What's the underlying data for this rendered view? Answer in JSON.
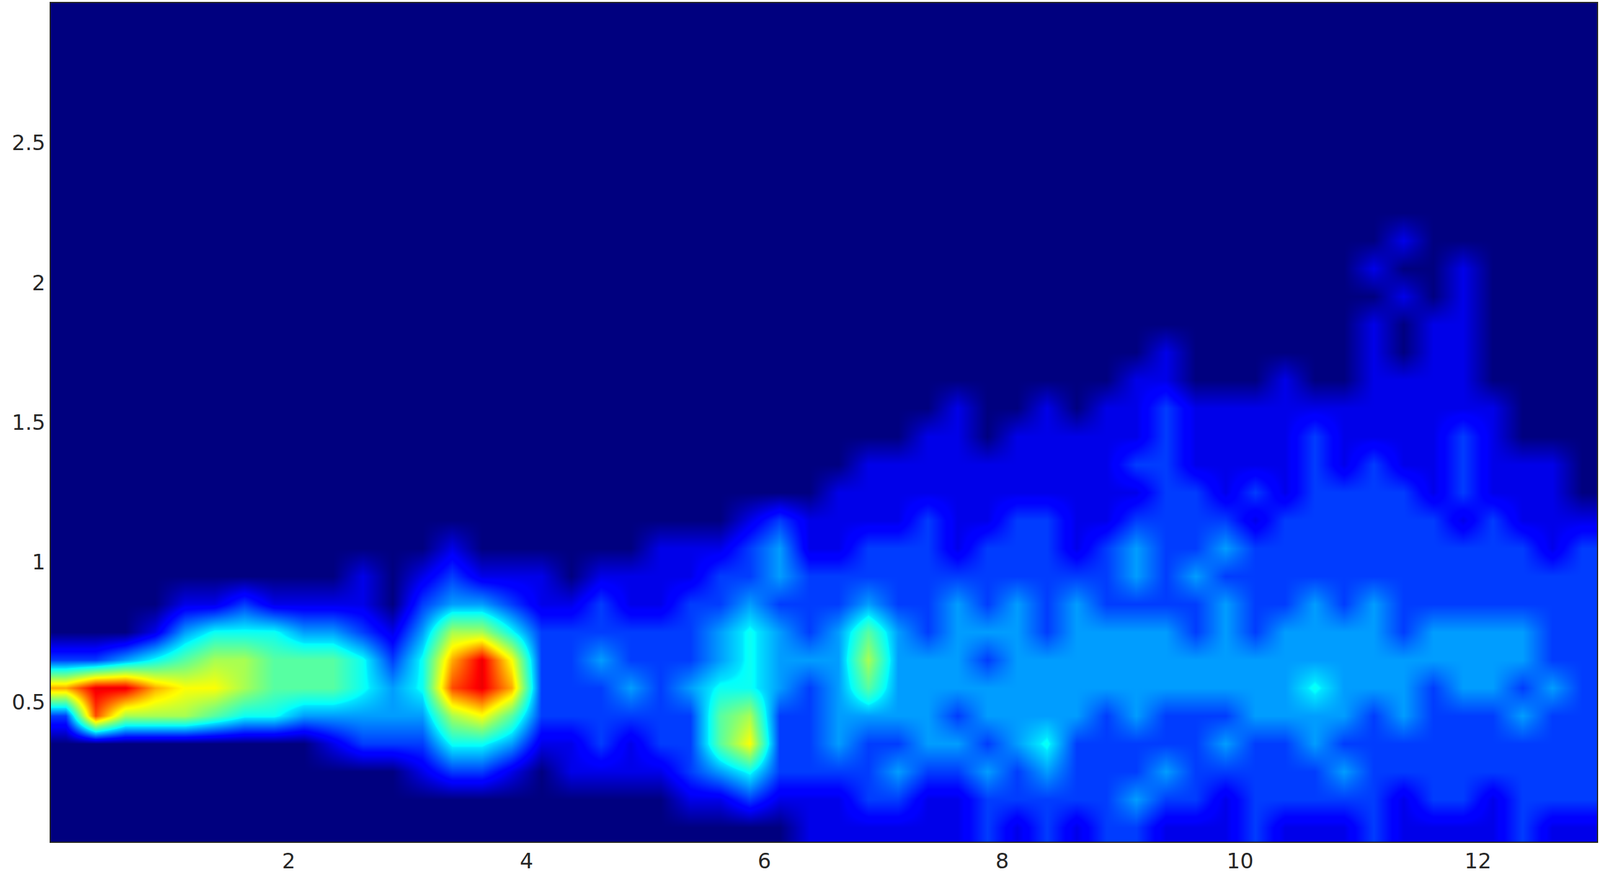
{
  "chart_data": {
    "type": "heatmap",
    "x": [
      0.125,
      0.375,
      0.625,
      0.875,
      1.125,
      1.375,
      1.625,
      1.875,
      2.125,
      2.375,
      2.625,
      2.875,
      3.125,
      3.375,
      3.625,
      3.875,
      4.125,
      4.375,
      4.625,
      4.875,
      5.125,
      5.375,
      5.625,
      5.875,
      6.125,
      6.375,
      6.625,
      6.875,
      7.125,
      7.375,
      7.625,
      7.875,
      8.125,
      8.375,
      8.625,
      8.875,
      9.125,
      9.375,
      9.625,
      9.875,
      10.125,
      10.375,
      10.625,
      10.875,
      11.125,
      11.375,
      11.625,
      11.875,
      12.125,
      12.375,
      12.625,
      12.875
    ],
    "y": [
      0.05,
      0.15,
      0.25,
      0.35,
      0.45,
      0.55,
      0.65,
      0.75,
      0.85,
      0.95,
      1.05,
      1.15,
      1.25,
      1.35,
      1.45,
      1.55,
      1.65,
      1.75,
      1.85,
      1.95,
      2.05,
      2.15,
      2.25,
      2.35,
      2.45,
      2.55,
      2.65,
      2.75,
      2.85,
      2.95
    ],
    "z": [
      [
        0,
        0,
        0,
        0,
        0,
        0,
        0,
        0,
        0,
        0,
        0,
        0,
        0,
        0,
        0,
        0,
        0,
        0,
        0,
        0,
        0,
        0,
        0,
        0,
        0,
        1,
        1,
        1,
        1,
        1,
        1,
        2,
        1,
        2,
        1,
        2,
        2,
        1,
        1,
        1,
        2,
        1,
        1,
        1,
        2,
        1,
        1,
        1,
        1,
        2,
        1,
        1
      ],
      [
        0,
        0,
        0,
        0,
        0,
        0,
        0,
        0,
        0,
        0,
        0,
        0,
        0,
        0,
        0,
        0,
        0,
        0,
        0,
        0,
        0,
        1,
        1,
        2,
        1,
        1,
        1,
        2,
        2,
        1,
        1,
        2,
        2,
        2,
        2,
        2,
        3,
        2,
        2,
        1,
        2,
        2,
        2,
        2,
        2,
        1,
        2,
        2,
        1,
        2,
        2,
        2
      ],
      [
        0,
        0,
        0,
        0,
        0,
        0,
        0,
        0,
        0,
        0,
        0,
        0,
        1,
        2,
        2,
        1,
        0,
        1,
        1,
        1,
        1,
        2,
        3,
        4,
        2,
        2,
        2,
        2,
        3,
        2,
        2,
        3,
        2,
        3,
        2,
        2,
        2,
        3,
        2,
        2,
        2,
        2,
        2,
        3,
        2,
        2,
        2,
        2,
        2,
        2,
        2,
        2
      ],
      [
        0,
        0,
        0,
        0,
        0,
        0,
        0,
        0,
        0,
        1,
        2,
        2,
        2,
        4,
        4,
        3,
        1,
        1,
        2,
        1,
        2,
        2,
        5,
        7,
        2,
        2,
        3,
        2,
        2,
        3,
        3,
        2,
        3,
        4,
        2,
        2,
        2,
        2,
        2,
        3,
        2,
        2,
        3,
        2,
        2,
        2,
        2,
        2,
        2,
        2,
        2,
        2
      ],
      [
        2,
        9,
        6,
        6,
        6,
        5,
        4,
        4,
        3,
        3,
        3,
        3,
        3,
        6,
        7,
        5,
        2,
        2,
        2,
        2,
        2,
        2,
        5,
        6,
        2,
        2,
        3,
        3,
        3,
        3,
        2,
        3,
        3,
        3,
        3,
        2,
        3,
        2,
        2,
        2,
        3,
        3,
        3,
        3,
        2,
        3,
        2,
        2,
        2,
        3,
        2,
        2
      ],
      [
        8,
        10,
        10,
        8,
        7,
        7,
        6,
        5,
        5,
        5,
        4,
        3,
        4,
        9,
        10,
        8,
        2,
        2,
        2,
        3,
        2,
        3,
        4,
        4,
        3,
        2,
        3,
        5,
        3,
        3,
        3,
        3,
        3,
        3,
        3,
        3,
        3,
        3,
        3,
        3,
        3,
        3,
        4,
        3,
        3,
        3,
        2,
        3,
        3,
        2,
        3,
        2
      ],
      [
        2,
        2,
        3,
        4,
        5,
        6,
        6,
        5,
        5,
        5,
        4,
        2,
        4,
        8,
        10,
        7,
        2,
        2,
        3,
        2,
        2,
        2,
        3,
        4,
        3,
        3,
        3,
        6,
        3,
        3,
        3,
        2,
        3,
        3,
        3,
        3,
        3,
        3,
        3,
        3,
        3,
        3,
        3,
        3,
        3,
        3,
        3,
        3,
        3,
        3,
        2,
        2
      ],
      [
        0,
        0,
        0,
        1,
        3,
        4,
        4,
        4,
        3,
        3,
        2,
        1,
        3,
        6,
        6,
        4,
        2,
        2,
        2,
        2,
        2,
        2,
        3,
        4,
        3,
        2,
        3,
        5,
        3,
        2,
        3,
        3,
        3,
        2,
        3,
        3,
        3,
        3,
        2,
        3,
        2,
        3,
        3,
        3,
        3,
        2,
        3,
        3,
        3,
        3,
        2,
        2
      ],
      [
        0,
        0,
        0,
        0,
        1,
        1,
        2,
        1,
        1,
        1,
        1,
        0,
        2,
        3,
        3,
        2,
        1,
        1,
        2,
        1,
        1,
        2,
        2,
        3,
        2,
        2,
        2,
        3,
        2,
        2,
        3,
        2,
        3,
        2,
        3,
        2,
        2,
        2,
        2,
        3,
        2,
        2,
        3,
        2,
        3,
        2,
        2,
        2,
        2,
        2,
        2,
        2
      ],
      [
        0,
        0,
        0,
        0,
        0,
        0,
        0,
        0,
        0,
        0,
        1,
        0,
        1,
        2,
        1,
        1,
        1,
        0,
        1,
        1,
        1,
        1,
        2,
        2,
        3,
        2,
        2,
        2,
        2,
        2,
        2,
        2,
        2,
        2,
        2,
        2,
        3,
        2,
        3,
        2,
        2,
        2,
        2,
        2,
        2,
        2,
        2,
        2,
        2,
        2,
        2,
        2
      ],
      [
        0,
        0,
        0,
        0,
        0,
        0,
        0,
        0,
        0,
        0,
        0,
        0,
        0,
        1,
        0,
        0,
        0,
        0,
        0,
        0,
        1,
        1,
        1,
        2,
        3,
        1,
        1,
        2,
        2,
        2,
        1,
        2,
        2,
        2,
        1,
        2,
        3,
        2,
        2,
        3,
        2,
        2,
        2,
        2,
        2,
        2,
        2,
        2,
        2,
        2,
        1,
        2
      ],
      [
        0,
        0,
        0,
        0,
        0,
        0,
        0,
        0,
        0,
        0,
        0,
        0,
        0,
        0,
        0,
        0,
        0,
        0,
        0,
        0,
        0,
        0,
        0,
        1,
        2,
        1,
        1,
        1,
        1,
        2,
        1,
        1,
        2,
        2,
        1,
        1,
        2,
        2,
        2,
        2,
        1,
        2,
        2,
        2,
        2,
        2,
        2,
        1,
        2,
        1,
        1,
        1
      ],
      [
        0,
        0,
        0,
        0,
        0,
        0,
        0,
        0,
        0,
        0,
        0,
        0,
        0,
        0,
        0,
        0,
        0,
        0,
        0,
        0,
        0,
        0,
        0,
        0,
        0,
        0,
        1,
        1,
        1,
        1,
        1,
        1,
        1,
        1,
        1,
        1,
        1,
        2,
        2,
        1,
        2,
        1,
        2,
        2,
        2,
        2,
        1,
        2,
        1,
        1,
        1,
        0
      ],
      [
        0,
        0,
        0,
        0,
        0,
        0,
        0,
        0,
        0,
        0,
        0,
        0,
        0,
        0,
        0,
        0,
        0,
        0,
        0,
        0,
        0,
        0,
        0,
        0,
        0,
        0,
        0,
        1,
        1,
        1,
        1,
        1,
        1,
        1,
        1,
        1,
        2,
        2,
        1,
        1,
        1,
        1,
        2,
        1,
        2,
        1,
        1,
        2,
        1,
        1,
        1,
        0
      ],
      [
        0,
        0,
        0,
        0,
        0,
        0,
        0,
        0,
        0,
        0,
        0,
        0,
        0,
        0,
        0,
        0,
        0,
        0,
        0,
        0,
        0,
        0,
        0,
        0,
        0,
        0,
        0,
        0,
        0,
        1,
        1,
        0,
        1,
        1,
        1,
        1,
        1,
        2,
        1,
        1,
        1,
        1,
        2,
        1,
        1,
        1,
        1,
        2,
        1,
        0,
        0,
        0
      ],
      [
        0,
        0,
        0,
        0,
        0,
        0,
        0,
        0,
        0,
        0,
        0,
        0,
        0,
        0,
        0,
        0,
        0,
        0,
        0,
        0,
        0,
        0,
        0,
        0,
        0,
        0,
        0,
        0,
        0,
        0,
        1,
        0,
        0,
        1,
        0,
        1,
        1,
        2,
        1,
        1,
        1,
        1,
        1,
        1,
        1,
        1,
        1,
        1,
        1,
        0,
        0,
        0
      ],
      [
        0,
        0,
        0,
        0,
        0,
        0,
        0,
        0,
        0,
        0,
        0,
        0,
        0,
        0,
        0,
        0,
        0,
        0,
        0,
        0,
        0,
        0,
        0,
        0,
        0,
        0,
        0,
        0,
        0,
        0,
        0,
        0,
        0,
        0,
        0,
        0,
        1,
        1,
        0,
        0,
        0,
        1,
        0,
        0,
        1,
        1,
        1,
        1,
        0,
        0,
        0,
        0
      ],
      [
        0,
        0,
        0,
        0,
        0,
        0,
        0,
        0,
        0,
        0,
        0,
        0,
        0,
        0,
        0,
        0,
        0,
        0,
        0,
        0,
        0,
        0,
        0,
        0,
        0,
        0,
        0,
        0,
        0,
        0,
        0,
        0,
        0,
        0,
        0,
        0,
        0,
        1,
        0,
        0,
        0,
        0,
        0,
        0,
        1,
        0,
        1,
        1,
        0,
        0,
        0,
        0
      ],
      [
        0,
        0,
        0,
        0,
        0,
        0,
        0,
        0,
        0,
        0,
        0,
        0,
        0,
        0,
        0,
        0,
        0,
        0,
        0,
        0,
        0,
        0,
        0,
        0,
        0,
        0,
        0,
        0,
        0,
        0,
        0,
        0,
        0,
        0,
        0,
        0,
        0,
        0,
        0,
        0,
        0,
        0,
        0,
        0,
        1,
        0,
        1,
        1,
        0,
        0,
        0,
        0
      ],
      [
        0,
        0,
        0,
        0,
        0,
        0,
        0,
        0,
        0,
        0,
        0,
        0,
        0,
        0,
        0,
        0,
        0,
        0,
        0,
        0,
        0,
        0,
        0,
        0,
        0,
        0,
        0,
        0,
        0,
        0,
        0,
        0,
        0,
        0,
        0,
        0,
        0,
        0,
        0,
        0,
        0,
        0,
        0,
        0,
        0,
        1,
        0,
        1,
        0,
        0,
        0,
        0
      ],
      [
        0,
        0,
        0,
        0,
        0,
        0,
        0,
        0,
        0,
        0,
        0,
        0,
        0,
        0,
        0,
        0,
        0,
        0,
        0,
        0,
        0,
        0,
        0,
        0,
        0,
        0,
        0,
        0,
        0,
        0,
        0,
        0,
        0,
        0,
        0,
        0,
        0,
        0,
        0,
        0,
        0,
        0,
        0,
        0,
        1,
        0,
        0,
        1,
        0,
        0,
        0,
        0
      ],
      [
        0,
        0,
        0,
        0,
        0,
        0,
        0,
        0,
        0,
        0,
        0,
        0,
        0,
        0,
        0,
        0,
        0,
        0,
        0,
        0,
        0,
        0,
        0,
        0,
        0,
        0,
        0,
        0,
        0,
        0,
        0,
        0,
        0,
        0,
        0,
        0,
        0,
        0,
        0,
        0,
        0,
        0,
        0,
        0,
        0,
        1,
        0,
        0,
        0,
        0,
        0,
        0
      ],
      [
        0,
        0,
        0,
        0,
        0,
        0,
        0,
        0,
        0,
        0,
        0,
        0,
        0,
        0,
        0,
        0,
        0,
        0,
        0,
        0,
        0,
        0,
        0,
        0,
        0,
        0,
        0,
        0,
        0,
        0,
        0,
        0,
        0,
        0,
        0,
        0,
        0,
        0,
        0,
        0,
        0,
        0,
        0,
        0,
        0,
        0,
        0,
        0,
        0,
        0,
        0,
        0
      ],
      [
        0,
        0,
        0,
        0,
        0,
        0,
        0,
        0,
        0,
        0,
        0,
        0,
        0,
        0,
        0,
        0,
        0,
        0,
        0,
        0,
        0,
        0,
        0,
        0,
        0,
        0,
        0,
        0,
        0,
        0,
        0,
        0,
        0,
        0,
        0,
        0,
        0,
        0,
        0,
        0,
        0,
        0,
        0,
        0,
        0,
        0,
        0,
        0,
        0,
        0,
        0,
        0
      ],
      [
        0,
        0,
        0,
        0,
        0,
        0,
        0,
        0,
        0,
        0,
        0,
        0,
        0,
        0,
        0,
        0,
        0,
        0,
        0,
        0,
        0,
        0,
        0,
        0,
        0,
        0,
        0,
        0,
        0,
        0,
        0,
        0,
        0,
        0,
        0,
        0,
        0,
        0,
        0,
        0,
        0,
        0,
        0,
        0,
        0,
        0,
        0,
        0,
        0,
        0,
        0,
        0
      ],
      [
        0,
        0,
        0,
        0,
        0,
        0,
        0,
        0,
        0,
        0,
        0,
        0,
        0,
        0,
        0,
        0,
        0,
        0,
        0,
        0,
        0,
        0,
        0,
        0,
        0,
        0,
        0,
        0,
        0,
        0,
        0,
        0,
        0,
        0,
        0,
        0,
        0,
        0,
        0,
        0,
        0,
        0,
        0,
        0,
        0,
        0,
        0,
        0,
        0,
        0,
        0,
        0
      ],
      [
        0,
        0,
        0,
        0,
        0,
        0,
        0,
        0,
        0,
        0,
        0,
        0,
        0,
        0,
        0,
        0,
        0,
        0,
        0,
        0,
        0,
        0,
        0,
        0,
        0,
        0,
        0,
        0,
        0,
        0,
        0,
        0,
        0,
        0,
        0,
        0,
        0,
        0,
        0,
        0,
        0,
        0,
        0,
        0,
        0,
        0,
        0,
        0,
        0,
        0,
        0,
        0
      ],
      [
        0,
        0,
        0,
        0,
        0,
        0,
        0,
        0,
        0,
        0,
        0,
        0,
        0,
        0,
        0,
        0,
        0,
        0,
        0,
        0,
        0,
        0,
        0,
        0,
        0,
        0,
        0,
        0,
        0,
        0,
        0,
        0,
        0,
        0,
        0,
        0,
        0,
        0,
        0,
        0,
        0,
        0,
        0,
        0,
        0,
        0,
        0,
        0,
        0,
        0,
        0,
        0
      ],
      [
        0,
        0,
        0,
        0,
        0,
        0,
        0,
        0,
        0,
        0,
        0,
        0,
        0,
        0,
        0,
        0,
        0,
        0,
        0,
        0,
        0,
        0,
        0,
        0,
        0,
        0,
        0,
        0,
        0,
        0,
        0,
        0,
        0,
        0,
        0,
        0,
        0,
        0,
        0,
        0,
        0,
        0,
        0,
        0,
        0,
        0,
        0,
        0,
        0,
        0,
        0,
        0
      ],
      [
        0,
        0,
        0,
        0,
        0,
        0,
        0,
        0,
        0,
        0,
        0,
        0,
        0,
        0,
        0,
        0,
        0,
        0,
        0,
        0,
        0,
        0,
        0,
        0,
        0,
        0,
        0,
        0,
        0,
        0,
        0,
        0,
        0,
        0,
        0,
        0,
        0,
        0,
        0,
        0,
        0,
        0,
        0,
        0,
        0,
        0,
        0,
        0,
        0,
        0,
        0,
        0
      ]
    ],
    "zlim": [
      0,
      11
    ],
    "xlim": [
      0,
      13
    ],
    "ylim": [
      0,
      3
    ],
    "xticks": [
      2,
      4,
      6,
      8,
      10,
      12
    ],
    "yticks": [
      0.5,
      1,
      1.5,
      2,
      2.5
    ],
    "grid": false
  }
}
